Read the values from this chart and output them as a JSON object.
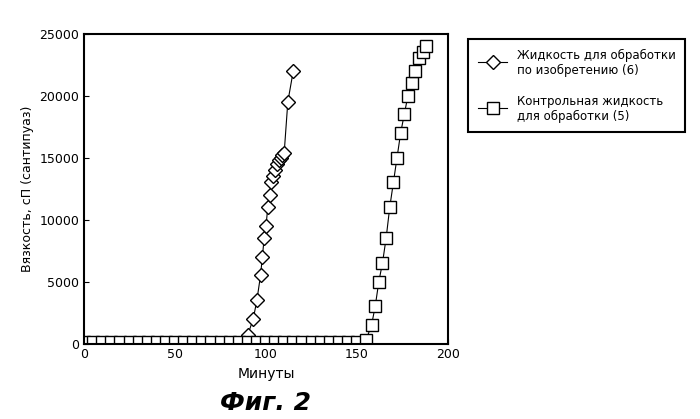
{
  "title": "Фиг. 2",
  "xlabel": "Минуты",
  "ylabel": "Вязкость, сП (сантипуаз)",
  "xlim": [
    0,
    200
  ],
  "ylim": [
    0,
    25000
  ],
  "xticks": [
    0,
    50,
    100,
    150,
    200
  ],
  "yticks": [
    0,
    5000,
    10000,
    15000,
    20000,
    25000
  ],
  "series1_label": "Жидкость для обработки\nпо изобретению (6)",
  "series2_label": "Контрольная жидкость\nдля обработки (5)",
  "series1_x": [
    88,
    90,
    93,
    95,
    97,
    98,
    99,
    100,
    101,
    102,
    103,
    104,
    105,
    106,
    107,
    108,
    109,
    110,
    112,
    115
  ],
  "series1_y": [
    300,
    700,
    2000,
    3500,
    5500,
    7000,
    8500,
    9500,
    11000,
    12000,
    13000,
    13500,
    14000,
    14500,
    14800,
    15000,
    15200,
    15400,
    19500,
    22000
  ],
  "series2_x": [
    0,
    5,
    10,
    15,
    20,
    25,
    30,
    35,
    40,
    45,
    50,
    55,
    60,
    65,
    70,
    75,
    80,
    85,
    90,
    95,
    100,
    105,
    110,
    115,
    120,
    125,
    130,
    135,
    140,
    145,
    150,
    155,
    158,
    160,
    162,
    164,
    166,
    168,
    170,
    172,
    174,
    176,
    178,
    180,
    182,
    184,
    186,
    188
  ],
  "series2_y": [
    100,
    100,
    100,
    100,
    100,
    100,
    100,
    100,
    100,
    100,
    100,
    100,
    100,
    100,
    100,
    100,
    100,
    100,
    100,
    100,
    100,
    100,
    100,
    100,
    100,
    100,
    100,
    100,
    100,
    100,
    100,
    300,
    1500,
    3000,
    5000,
    6500,
    8500,
    11000,
    13000,
    15000,
    17000,
    18500,
    20000,
    21000,
    22000,
    23000,
    23500,
    24000
  ],
  "background_color": "#ffffff",
  "plot_bg_color": "#ffffff",
  "line_color": "#000000",
  "figsize": [
    7.0,
    4.19
  ],
  "dpi": 100
}
